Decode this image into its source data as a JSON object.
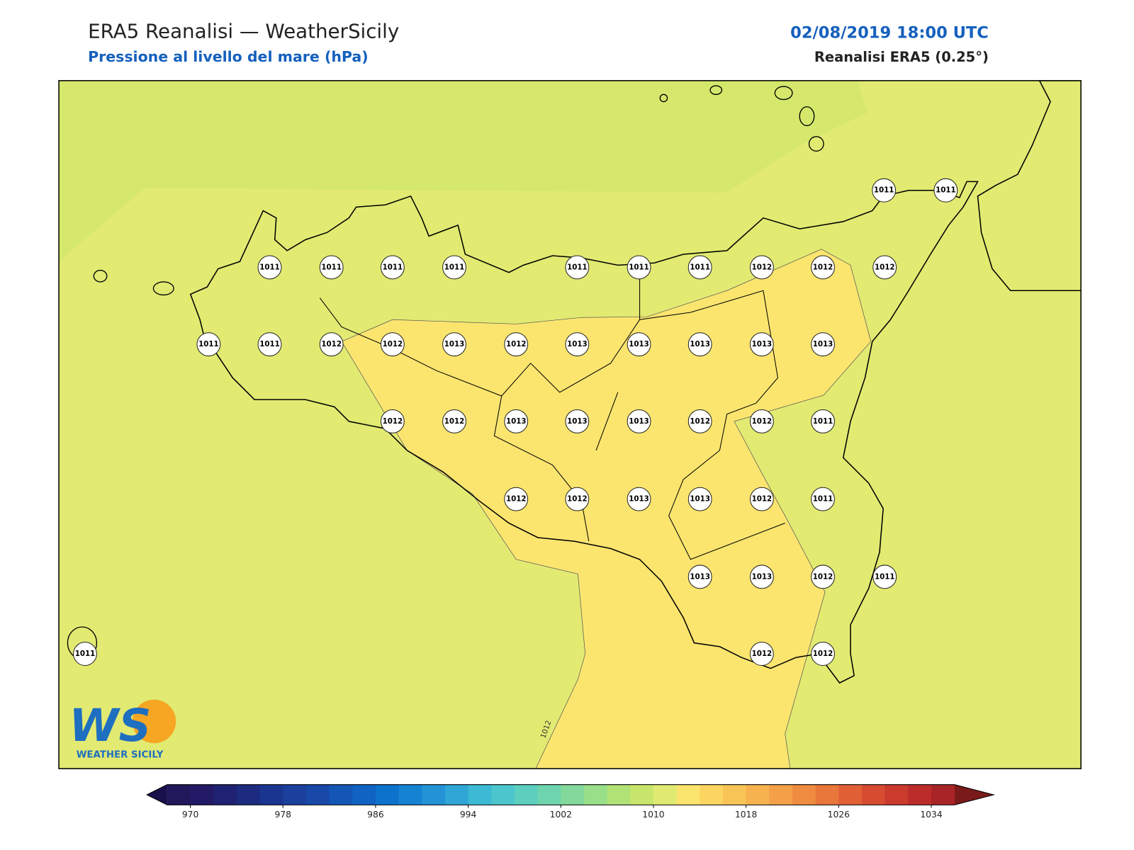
{
  "header": {
    "title": "ERA5 Reanalisi — WeatherSicily",
    "subtitle": "Pressione al livello del mare (hPa)",
    "datetime": "02/08/2019 18:00 UTC",
    "source": "Reanalisi ERA5 (0.25°)"
  },
  "stations": [
    1011,
    1011,
    1011,
    1011,
    1011,
    1011,
    1011,
    1011,
    1011,
    1012,
    1012,
    1012,
    1011,
    1011,
    1012,
    1012,
    1013,
    1012,
    1013,
    1013,
    1013,
    1013,
    1013,
    1012,
    1012,
    1013,
    1013,
    1013,
    1012,
    1012,
    1011,
    1012,
    1012,
    1013,
    1013,
    1012,
    1011,
    1013,
    1013,
    1012,
    1011,
    1011,
    1012,
    1012
  ],
  "contour_label": 1012,
  "logo": {
    "text": "WS",
    "caption": "WEATHER SICILY"
  },
  "colorbar": {
    "min": 968,
    "max": 1036,
    "ticks": [
      970,
      978,
      986,
      994,
      1002,
      1010,
      1018,
      1026,
      1034
    ],
    "under_color": "#17104a",
    "over_color": "#7a1a1a",
    "colors": [
      "#21175b",
      "#221a66",
      "#1f2272",
      "#1c2b80",
      "#1a3590",
      "#1a3f9c",
      "#1849a8",
      "#1456b5",
      "#1063c2",
      "#0c72cc",
      "#1582d2",
      "#2393d5",
      "#2fa6d6",
      "#3cb9d4",
      "#4cc6cc",
      "#5ccfbf",
      "#6ed4ad",
      "#83d99b",
      "#99de88",
      "#b1e276",
      "#c8e66c",
      "#e0ea72",
      "#fbe46e",
      "#fcd460",
      "#f9c456",
      "#f6b24f",
      "#f3a048",
      "#ef8c41",
      "#e9763b",
      "#e26036",
      "#d74b31",
      "#ca3a2d",
      "#bb2c2a",
      "#a82426"
    ]
  }
}
